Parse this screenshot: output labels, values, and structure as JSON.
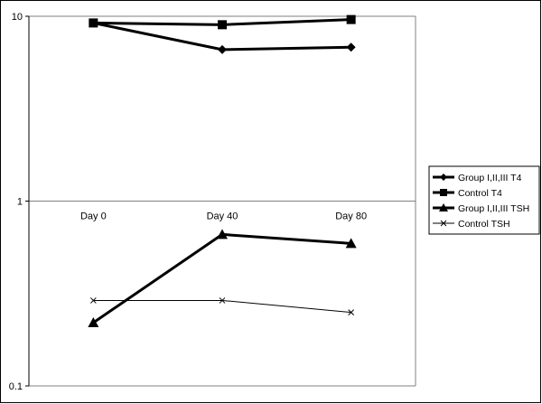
{
  "chart_data": {
    "type": "line",
    "title": "",
    "xlabel": "",
    "ylabel": "",
    "y_scale": "log",
    "ylim": [
      0.1,
      10
    ],
    "y_ticks": [
      "0.1",
      "1",
      "10"
    ],
    "categories": [
      "Day 0",
      "Day 40",
      "Day 80"
    ],
    "grid": "horizontal at y=1",
    "legend_position": "right",
    "series": [
      {
        "name": "Group I,II,III T4",
        "values": [
          9.2,
          6.6,
          6.8
        ],
        "marker": "diamond",
        "line_weight": "thick"
      },
      {
        "name": "Control T4",
        "values": [
          9.2,
          9.0,
          9.6
        ],
        "marker": "square",
        "line_weight": "thick"
      },
      {
        "name": "Group I,II,III TSH",
        "values": [
          0.22,
          0.66,
          0.59
        ],
        "marker": "triangle",
        "line_weight": "thick"
      },
      {
        "name": "Control TSH",
        "values": [
          0.29,
          0.29,
          0.25
        ],
        "marker": "x",
        "line_weight": "thin"
      }
    ]
  }
}
